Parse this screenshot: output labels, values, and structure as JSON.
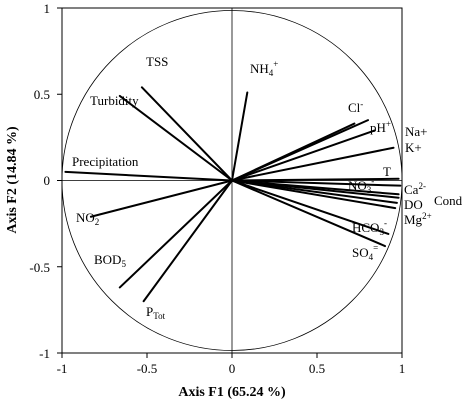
{
  "chart_data": {
    "type": "biplot",
    "xlabel": "Axis F1 (65.24 %)",
    "ylabel": "Axis F2 (14.84 %)",
    "xlim": [
      -1,
      1
    ],
    "ylim": [
      -1,
      1
    ],
    "xticks": [
      "-1",
      "-0.5",
      "0",
      "0.5",
      "1"
    ],
    "yticks": [
      "1",
      "0.5",
      "0",
      "-0.5",
      "-1"
    ],
    "correlation_circle": true,
    "vectors": [
      {
        "id": "tss",
        "x": -0.53,
        "y": 0.54
      },
      {
        "id": "nh4",
        "x": 0.09,
        "y": 0.51
      },
      {
        "id": "turbidity",
        "x": -0.66,
        "y": 0.49
      },
      {
        "id": "cl",
        "x": 0.72,
        "y": 0.33
      },
      {
        "id": "ph",
        "x": 0.8,
        "y": 0.35
      },
      {
        "id": "na",
        "x": 0.84,
        "y": 0.29
      },
      {
        "id": "k",
        "x": 0.95,
        "y": 0.19
      },
      {
        "id": "precipitation",
        "x": -0.98,
        "y": 0.05
      },
      {
        "id": "t",
        "x": 0.98,
        "y": 0.01
      },
      {
        "id": "no3",
        "x": 0.99,
        "y": -0.03
      },
      {
        "id": "ca",
        "x": 0.98,
        "y": -0.08
      },
      {
        "id": "do",
        "x": 0.97,
        "y": -0.13
      },
      {
        "id": "mg",
        "x": 0.96,
        "y": -0.16
      },
      {
        "id": "cond",
        "x": 0.98,
        "y": -0.1
      },
      {
        "id": "hco3",
        "x": 0.92,
        "y": -0.31
      },
      {
        "id": "so4",
        "x": 0.9,
        "y": -0.38
      },
      {
        "id": "no2",
        "x": -0.83,
        "y": -0.21
      },
      {
        "id": "bod5",
        "x": -0.66,
        "y": -0.62
      },
      {
        "id": "ptot",
        "x": -0.52,
        "y": -0.7
      }
    ],
    "labels": {
      "tss": "TSS",
      "nh4_main": "NH",
      "nh4_sub": "4",
      "nh4_sup": "+",
      "turbidity": "Turbidity",
      "cl_main": "Cl",
      "cl_sup": "-",
      "ph_main": "pH",
      "ph_sup": "+",
      "na": "Na+",
      "k": "K+",
      "precipitation": "Precipitation",
      "t": "T",
      "no3_main": "NO",
      "no3_sub": "3",
      "no3_sup": "-",
      "ca_main": "Ca",
      "ca_sup": "2-",
      "do": "DO",
      "mg_main": "Mg",
      "mg_sup": "2+",
      "cond": "Cond",
      "hco3_main": "HCO",
      "hco3_sub": "3",
      "hco3_sup": "-",
      "so4_main": "SO",
      "so4_sub": "4",
      "so4_sup": "=",
      "no2_main": "NO",
      "no2_sub": "2",
      "no2_sup": "-",
      "bod5_main": "BOD",
      "bod5_sub": "5",
      "ptot_main": "P",
      "ptot_sub": "Tot"
    }
  }
}
